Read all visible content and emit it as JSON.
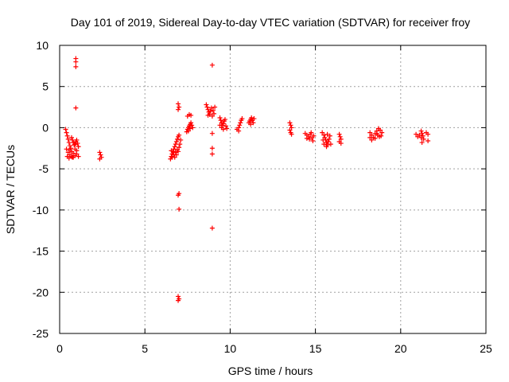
{
  "chart_data": {
    "type": "scatter",
    "title": "Day 101 of 2019, Sidereal Day-to-day VTEC variation (SDTVAR) for receiver froy",
    "xlabel": "GPS time / hours",
    "ylabel": "SDTVAR / TECUs",
    "xlim": [
      0,
      25
    ],
    "ylim": [
      -25,
      10
    ],
    "xticks": [
      0,
      5,
      10,
      15,
      20,
      25
    ],
    "yticks": [
      -25,
      -20,
      -15,
      -10,
      -5,
      0,
      5,
      10
    ],
    "xtick_labels": [
      "0",
      "5",
      "10",
      "15",
      "20",
      "25"
    ],
    "ytick_labels": [
      "-25",
      "-20",
      "-15",
      "-10",
      "-5",
      "0",
      "5",
      "10"
    ],
    "grid": true,
    "marker": "plus",
    "color": "#ff0000",
    "series": [
      {
        "name": "SDTVAR",
        "points": [
          [
            0.35,
            -0.2
          ],
          [
            0.4,
            -0.6
          ],
          [
            0.45,
            -1.0
          ],
          [
            0.5,
            -1.4
          ],
          [
            0.55,
            -1.8
          ],
          [
            0.6,
            -2.2
          ],
          [
            0.65,
            -2.5
          ],
          [
            0.4,
            -2.6
          ],
          [
            0.5,
            -3.0
          ],
          [
            0.6,
            -3.3
          ],
          [
            0.7,
            -3.5
          ],
          [
            0.8,
            -3.6
          ],
          [
            0.9,
            -3.4
          ],
          [
            1.0,
            -3.2
          ],
          [
            0.45,
            -3.5
          ],
          [
            0.55,
            -3.7
          ],
          [
            0.7,
            -1.2
          ],
          [
            0.75,
            -1.5
          ],
          [
            0.8,
            -1.8
          ],
          [
            0.85,
            -2.1
          ],
          [
            0.9,
            -2.0
          ],
          [
            0.95,
            -1.7
          ],
          [
            1.0,
            -1.5
          ],
          [
            1.05,
            -1.9
          ],
          [
            1.1,
            -2.3
          ],
          [
            0.9,
            -2.6
          ],
          [
            1.0,
            -2.8
          ],
          [
            0.7,
            -2.9
          ],
          [
            0.8,
            -3.1
          ],
          [
            0.6,
            -2.7
          ],
          [
            1.1,
            -3.5
          ],
          [
            0.75,
            -3.6
          ],
          [
            0.95,
            8.4
          ],
          [
            0.95,
            8.0
          ],
          [
            0.95,
            7.4
          ],
          [
            0.95,
            2.4
          ],
          [
            2.35,
            -3.0
          ],
          [
            2.4,
            -3.3
          ],
          [
            2.45,
            -3.6
          ],
          [
            2.35,
            -3.8
          ],
          [
            6.5,
            -3.8
          ],
          [
            6.55,
            -3.5
          ],
          [
            6.6,
            -3.2
          ],
          [
            6.65,
            -2.9
          ],
          [
            6.7,
            -2.6
          ],
          [
            6.75,
            -2.3
          ],
          [
            6.8,
            -2.0
          ],
          [
            6.85,
            -1.7
          ],
          [
            6.9,
            -1.4
          ],
          [
            6.95,
            -1.1
          ],
          [
            7.0,
            -0.9
          ],
          [
            6.6,
            -3.6
          ],
          [
            6.7,
            -3.3
          ],
          [
            6.8,
            -3.0
          ],
          [
            6.9,
            -2.7
          ],
          [
            7.0,
            -2.4
          ],
          [
            7.05,
            -2.0
          ],
          [
            6.75,
            -3.6
          ],
          [
            6.85,
            -3.3
          ],
          [
            6.95,
            -2.9
          ],
          [
            7.1,
            -1.5
          ],
          [
            6.55,
            -2.8
          ],
          [
            6.95,
            2.9
          ],
          [
            7.0,
            2.5
          ],
          [
            6.95,
            2.2
          ],
          [
            7.0,
            -8.0
          ],
          [
            6.95,
            -8.2
          ],
          [
            7.0,
            -9.9
          ],
          [
            6.95,
            -20.5
          ],
          [
            7.0,
            -20.8
          ],
          [
            6.95,
            -21.0
          ],
          [
            7.5,
            1.4
          ],
          [
            7.6,
            1.6
          ],
          [
            7.7,
            1.5
          ],
          [
            7.45,
            -0.5
          ],
          [
            7.5,
            -0.2
          ],
          [
            7.55,
            0.0
          ],
          [
            7.6,
            0.2
          ],
          [
            7.65,
            0.4
          ],
          [
            7.7,
            0.6
          ],
          [
            7.75,
            0.3
          ],
          [
            7.8,
            0.0
          ],
          [
            7.55,
            -0.4
          ],
          [
            7.65,
            -0.1
          ],
          [
            8.6,
            2.8
          ],
          [
            8.65,
            2.5
          ],
          [
            8.7,
            2.2
          ],
          [
            8.75,
            1.9
          ],
          [
            8.8,
            1.6
          ],
          [
            8.85,
            2.0
          ],
          [
            8.9,
            2.4
          ],
          [
            9.0,
            2.1
          ],
          [
            9.05,
            1.7
          ],
          [
            9.1,
            2.5
          ],
          [
            8.7,
            1.5
          ],
          [
            8.95,
            1.4
          ],
          [
            8.95,
            7.6
          ],
          [
            8.95,
            -0.7
          ],
          [
            8.95,
            -2.5
          ],
          [
            8.95,
            -3.2
          ],
          [
            8.95,
            -12.2
          ],
          [
            9.4,
            1.2
          ],
          [
            9.45,
            0.9
          ],
          [
            9.5,
            0.6
          ],
          [
            9.55,
            0.3
          ],
          [
            9.6,
            0.5
          ],
          [
            9.65,
            0.8
          ],
          [
            9.7,
            1.0
          ],
          [
            9.75,
            0.2
          ],
          [
            9.8,
            -0.1
          ],
          [
            9.5,
            0.0
          ],
          [
            9.6,
            -0.2
          ],
          [
            9.4,
            0.3
          ],
          [
            10.4,
            -0.2
          ],
          [
            10.5,
            0.0
          ],
          [
            10.55,
            0.3
          ],
          [
            10.6,
            0.6
          ],
          [
            10.65,
            0.9
          ],
          [
            10.7,
            1.1
          ],
          [
            10.5,
            -0.4
          ],
          [
            11.1,
            0.6
          ],
          [
            11.15,
            0.8
          ],
          [
            11.2,
            1.0
          ],
          [
            11.25,
            1.2
          ],
          [
            11.3,
            0.9
          ],
          [
            11.35,
            0.6
          ],
          [
            11.4,
            1.1
          ],
          [
            11.2,
            0.4
          ],
          [
            13.5,
            0.6
          ],
          [
            13.55,
            0.3
          ],
          [
            13.6,
            0.0
          ],
          [
            13.5,
            -0.3
          ],
          [
            13.55,
            -0.6
          ],
          [
            13.6,
            -0.8
          ],
          [
            14.4,
            -0.7
          ],
          [
            14.5,
            -0.9
          ],
          [
            14.6,
            -1.1
          ],
          [
            14.7,
            -0.8
          ],
          [
            14.8,
            -1.2
          ],
          [
            14.9,
            -1.0
          ],
          [
            14.5,
            -1.3
          ],
          [
            14.65,
            -1.4
          ],
          [
            14.85,
            -1.6
          ],
          [
            14.75,
            -0.6
          ],
          [
            15.4,
            -0.6
          ],
          [
            15.5,
            -0.9
          ],
          [
            15.55,
            -1.2
          ],
          [
            15.6,
            -1.5
          ],
          [
            15.65,
            -1.8
          ],
          [
            15.7,
            -2.1
          ],
          [
            15.75,
            -1.7
          ],
          [
            15.8,
            -1.4
          ],
          [
            15.85,
            -1.0
          ],
          [
            15.5,
            -2.0
          ],
          [
            15.65,
            -2.3
          ],
          [
            15.9,
            -2.0
          ],
          [
            15.45,
            -1.5
          ],
          [
            15.7,
            -0.8
          ],
          [
            16.4,
            -0.8
          ],
          [
            16.45,
            -1.1
          ],
          [
            16.5,
            -1.4
          ],
          [
            16.4,
            -1.7
          ],
          [
            16.5,
            -1.9
          ],
          [
            18.2,
            -0.6
          ],
          [
            18.3,
            -0.9
          ],
          [
            18.4,
            -1.2
          ],
          [
            18.5,
            -0.7
          ],
          [
            18.6,
            -0.4
          ],
          [
            18.7,
            -0.1
          ],
          [
            18.8,
            -0.3
          ],
          [
            18.9,
            -0.6
          ],
          [
            18.65,
            -0.9
          ],
          [
            18.75,
            -1.1
          ],
          [
            18.3,
            -1.5
          ],
          [
            18.5,
            -1.3
          ],
          [
            18.85,
            -1.0
          ],
          [
            18.2,
            -1.2
          ],
          [
            18.6,
            -0.7
          ],
          [
            20.9,
            -0.8
          ],
          [
            21.0,
            -1.1
          ],
          [
            21.1,
            -0.9
          ],
          [
            21.2,
            -0.4
          ],
          [
            21.25,
            -0.7
          ],
          [
            21.3,
            -1.0
          ],
          [
            21.35,
            -1.4
          ],
          [
            21.25,
            -1.8
          ],
          [
            21.5,
            -0.6
          ],
          [
            21.6,
            -0.8
          ],
          [
            21.6,
            -1.6
          ],
          [
            21.2,
            -1.2
          ]
        ]
      }
    ]
  }
}
